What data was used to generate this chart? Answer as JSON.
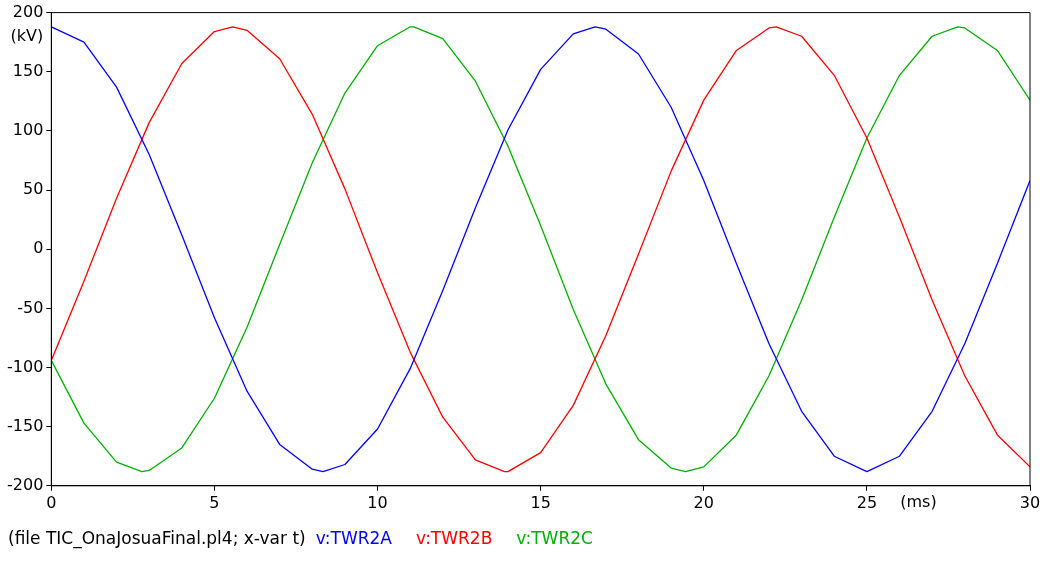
{
  "chart_data": {
    "type": "line",
    "xlabel": "(ms)",
    "ylabel": "(kV)",
    "xlim": [
      0,
      30
    ],
    "xticks": [
      0,
      5,
      10,
      15,
      20,
      25,
      30
    ],
    "ylim": [
      -200,
      200
    ],
    "yticks": [
      -200,
      -150,
      -100,
      -50,
      0,
      50,
      100,
      150,
      200
    ],
    "grid": false,
    "legend": "bottom",
    "marker": "none",
    "line_style": "solid",
    "annotations": [
      "(file TIC_OnaJosuaFinal.pl4; x-var t)"
    ],
    "series": [
      {
        "name": "v:TWR2A",
        "color": "#0000ff",
        "x": [
          0,
          1,
          2,
          3,
          4,
          5,
          6,
          7,
          8,
          8.33,
          9,
          10,
          11,
          12,
          13,
          14,
          15,
          16,
          16.67,
          17,
          18,
          19,
          20,
          21,
          22,
          23,
          24,
          25,
          26,
          27,
          28,
          29,
          30
        ],
        "values": [
          188,
          175,
          137,
          80,
          12,
          -58,
          -120,
          -165,
          -186,
          -188,
          -182,
          -152,
          -101,
          -35,
          35,
          101,
          152,
          182,
          188,
          186,
          165,
          120,
          58,
          -12,
          -80,
          -137,
          -175,
          -188,
          -175,
          -137,
          -80,
          -12,
          58
        ]
      },
      {
        "name": "v:TWR2B",
        "color": "#ff0000",
        "x": [
          0,
          1,
          2,
          3,
          4,
          5,
          5.56,
          6,
          7,
          8,
          9,
          10,
          11,
          12,
          13,
          13.89,
          14,
          15,
          16,
          17,
          18,
          19,
          20,
          21,
          22,
          22.22,
          23,
          24,
          25,
          26,
          27,
          28,
          29,
          30
        ],
        "values": [
          -94,
          -27,
          43,
          107,
          157,
          184,
          188,
          185,
          161,
          114,
          51,
          -20,
          -87,
          -142,
          -178,
          -188,
          -188,
          -172,
          -132,
          -73,
          -4,
          66,
          126,
          168,
          187,
          188,
          180,
          147,
          94,
          27,
          -43,
          -107,
          -157,
          -184
        ]
      },
      {
        "name": "v:TWR2C",
        "color": "#00b000",
        "x": [
          0,
          1,
          2,
          2.78,
          3,
          4,
          5,
          6,
          7,
          8,
          9,
          10,
          11,
          11.11,
          12,
          13,
          14,
          15,
          16,
          17,
          18,
          19,
          19.44,
          20,
          21,
          22,
          23,
          24,
          25,
          26,
          27,
          27.78,
          28,
          29,
          30
        ],
        "values": [
          -94,
          -147,
          -180,
          -188,
          -187,
          -168,
          -126,
          -66,
          4,
          73,
          132,
          172,
          188,
          188,
          178,
          142,
          87,
          20,
          -51,
          -114,
          -161,
          -185,
          -188,
          -184,
          -157,
          -107,
          -43,
          27,
          94,
          147,
          180,
          188,
          187,
          168,
          126
        ]
      }
    ]
  }
}
